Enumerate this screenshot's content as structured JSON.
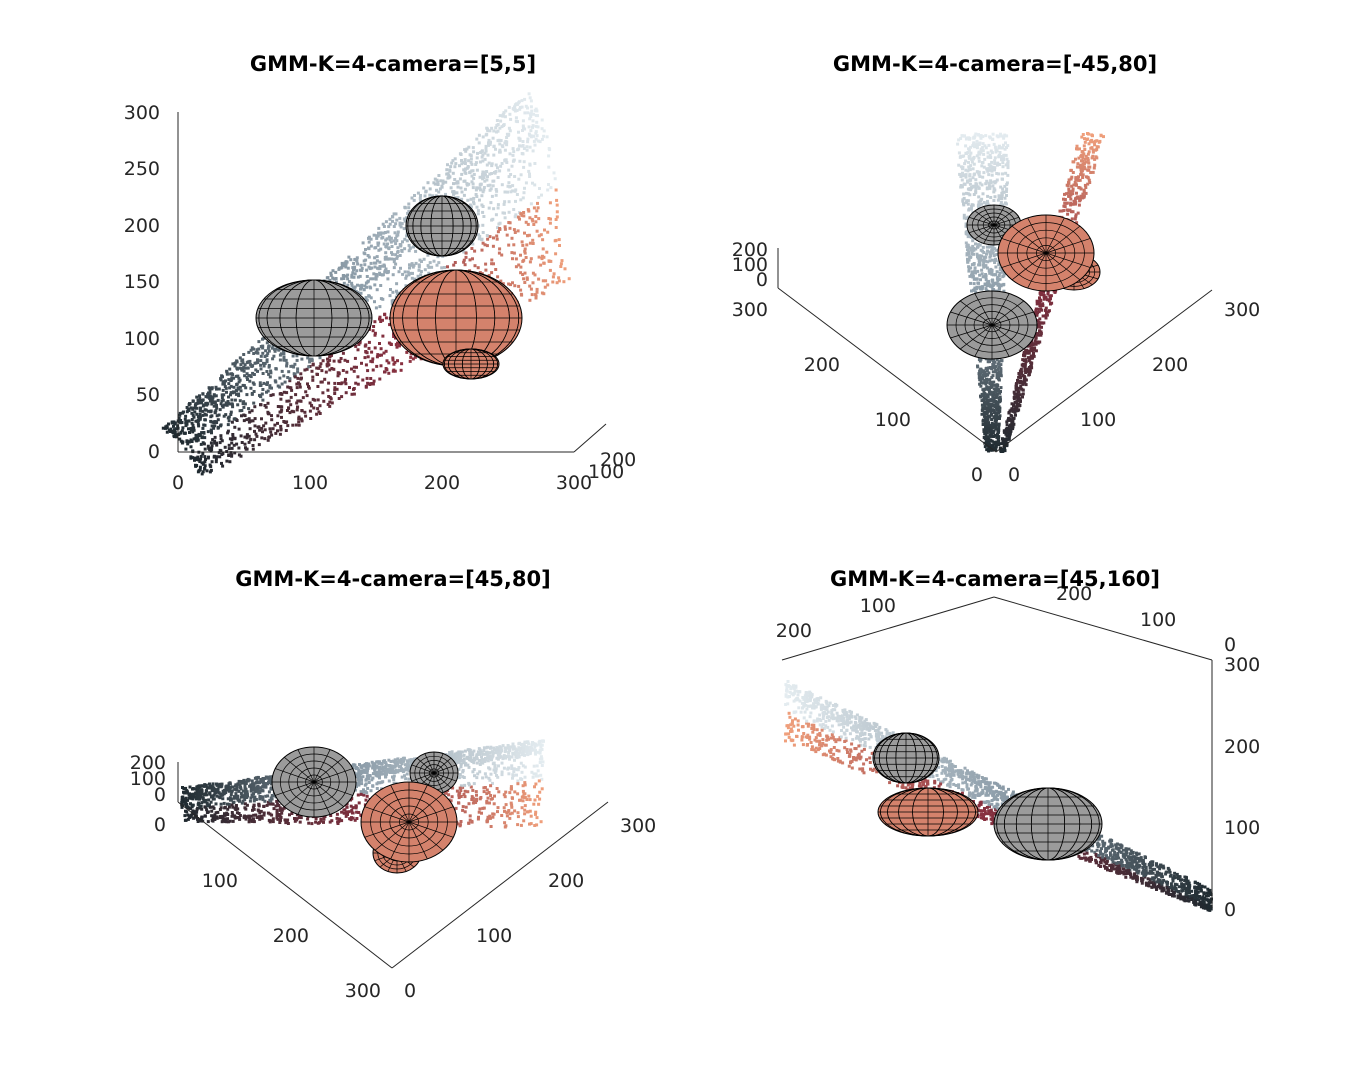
{
  "chart_data": [
    {
      "type": "scatter",
      "title": "GMM-K=4-camera=[5,5]",
      "camera": {
        "azimuth": 5,
        "elevation": 5
      },
      "xlim": [
        0,
        300
      ],
      "ylim": [
        0,
        250
      ],
      "zlim": [
        0,
        300
      ],
      "x_ticks": [
        "0",
        "100",
        "200",
        "300"
      ],
      "y_ticks": [
        "100",
        "200"
      ],
      "z_ticks": [
        "0",
        "50",
        "100",
        "150",
        "200",
        "250",
        "300"
      ],
      "series": [
        {
          "ellipsoids": [
            {
              "x": 110,
              "z": 115,
              "color": "#9b9b9b"
            },
            {
              "x": 210,
              "z": 120,
              "color": "#d4826c"
            },
            {
              "x": 200,
              "z": 200,
              "color": "#9b9b9b"
            },
            {
              "x": 225,
              "z": 75,
              "color": "#d4826c"
            }
          ]
        }
      ]
    },
    {
      "type": "scatter",
      "title": "GMM-K=4-camera=[-45,80]",
      "camera": {
        "azimuth": -45,
        "elevation": 80
      },
      "x_ticks": [
        "0",
        "100",
        "200",
        "300"
      ],
      "y_ticks": [
        "0",
        "100",
        "200",
        "300"
      ],
      "z_ticks": [
        "0",
        "100",
        "200"
      ]
    },
    {
      "type": "scatter",
      "title": "GMM-K=4-camera=[45,80]",
      "camera": {
        "azimuth": 45,
        "elevation": 80
      },
      "x_ticks": [
        "0",
        "100",
        "200",
        "300"
      ],
      "y_ticks": [
        "0",
        "100",
        "200",
        "300"
      ],
      "z_ticks": [
        "0",
        "100",
        "200"
      ]
    },
    {
      "type": "scatter",
      "title": "GMM-K=4-camera=[45,160]",
      "camera": {
        "azimuth": 45,
        "elevation": 160
      },
      "x_ticks": [
        "0",
        "100",
        "200"
      ],
      "y_ticks": [
        "0",
        "100",
        "200"
      ],
      "z_ticks": [
        "0",
        "100",
        "200",
        "300"
      ]
    }
  ],
  "colors": {
    "dark": "#1f2a30",
    "mid_blue": "#8e9eaa",
    "light": "#e4ecf0",
    "salmon": "#f0a07c",
    "maroon": "#8a3040",
    "ellipsoid_gray": "#9b9b9b",
    "ellipsoid_salmon": "#d4826c"
  }
}
